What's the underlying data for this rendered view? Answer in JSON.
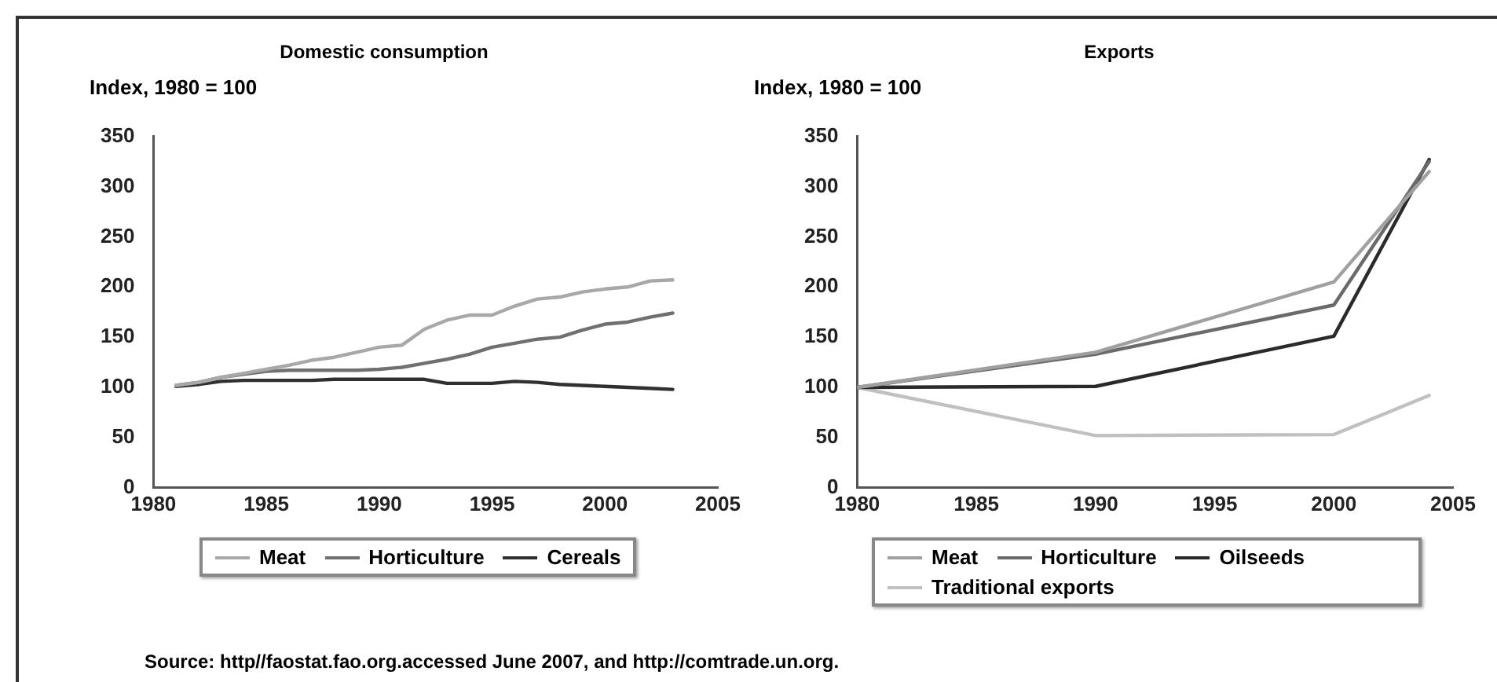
{
  "chart_data": [
    {
      "type": "line",
      "title": "Domestic consumption",
      "ylabel": "Index, 1980 = 100",
      "xlim": [
        1980,
        2005
      ],
      "xticks": [
        1980,
        1985,
        1990,
        1995,
        2000,
        2005
      ],
      "ylim": [
        0,
        350
      ],
      "yticks": [
        0,
        50,
        100,
        150,
        200,
        250,
        300,
        350
      ],
      "grid": false,
      "legend": "bottom",
      "marker": "none",
      "x": [
        1981,
        1982,
        1983,
        1984,
        1985,
        1986,
        1987,
        1988,
        1989,
        1990,
        1991,
        1992,
        1993,
        1994,
        1995,
        1996,
        1997,
        1998,
        1999,
        2000,
        2001,
        2002,
        2003
      ],
      "series": [
        {
          "name": "Meat",
          "color": "#a8a8a8",
          "values": [
            102,
            105,
            110,
            114,
            118,
            122,
            127,
            130,
            135,
            140,
            142,
            158,
            167,
            172,
            172,
            181,
            188,
            190,
            195,
            198,
            200,
            206,
            207
          ]
        },
        {
          "name": "Horticulture",
          "color": "#707070",
          "values": [
            102,
            105,
            110,
            113,
            116,
            117,
            117,
            117,
            117,
            118,
            120,
            124,
            128,
            133,
            140,
            144,
            148,
            150,
            157,
            163,
            165,
            170,
            174
          ]
        },
        {
          "name": "Cereals",
          "color": "#303030",
          "values": [
            101,
            103,
            106,
            107,
            107,
            107,
            107,
            108,
            108,
            108,
            108,
            108,
            104,
            104,
            104,
            106,
            105,
            103,
            102,
            101,
            100,
            99,
            98
          ]
        }
      ]
    },
    {
      "type": "line",
      "title": "Exports",
      "ylabel": "Index, 1980 = 100",
      "xlim": [
        1980,
        2005
      ],
      "xticks": [
        1980,
        1985,
        1990,
        1995,
        2000,
        2005
      ],
      "ylim": [
        0,
        350
      ],
      "yticks": [
        0,
        50,
        100,
        150,
        200,
        250,
        300,
        350
      ],
      "grid": false,
      "legend": "bottom",
      "marker": "none",
      "x": [
        1980,
        1990,
        2000,
        2004
      ],
      "series": [
        {
          "name": "Meat",
          "color": "#a0a0a0",
          "values": [
            100,
            135,
            205,
            315
          ]
        },
        {
          "name": "Horticulture",
          "color": "#6a6a6a",
          "values": [
            100,
            133,
            182,
            325
          ]
        },
        {
          "name": "Oilseeds",
          "color": "#2a2a2a",
          "values": [
            100,
            101,
            151,
            327
          ]
        },
        {
          "name": "Traditional exports",
          "color": "#c0c0c0",
          "values": [
            100,
            52,
            53,
            92
          ]
        }
      ],
      "annotations": [
        "Source: http//faostat.fao.org.accessed June 2007, and  http://comtrade.un.org."
      ]
    }
  ]
}
